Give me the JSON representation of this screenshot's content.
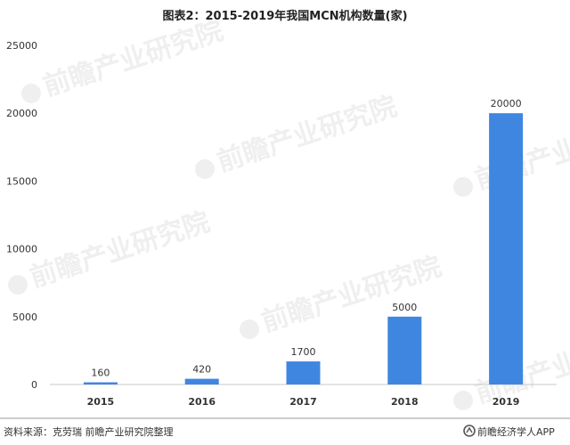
{
  "chart_data": {
    "type": "bar",
    "title": "图表2：2015-2019年我国MCN机构数量(家)",
    "categories": [
      "2015",
      "2016",
      "2017",
      "2018",
      "2019"
    ],
    "values": [
      160,
      420,
      1700,
      5000,
      20000
    ],
    "data_labels": [
      "160",
      "420",
      "1700",
      "5000",
      "20000"
    ],
    "ylim": [
      0,
      25000
    ],
    "yticks": [
      0,
      5000,
      10000,
      15000,
      20000,
      25000
    ],
    "ytick_labels": [
      "0",
      "5000",
      "10000",
      "15000",
      "20000",
      "25000"
    ],
    "xlabel": "",
    "ylabel": "",
    "bar_color": "#3f86e0",
    "grid": false,
    "legend": "none"
  },
  "footer": {
    "source": "资料来源：克劳瑞 前瞻产业研究院整理",
    "brand": "前瞻经济学人APP"
  },
  "watermark": {
    "text": "前瞻产业研究院"
  },
  "colors": {
    "title": "#222222",
    "axis_text": "#333333",
    "footer_line": "#9a9a9a",
    "watermark": "#e6e6e6"
  }
}
